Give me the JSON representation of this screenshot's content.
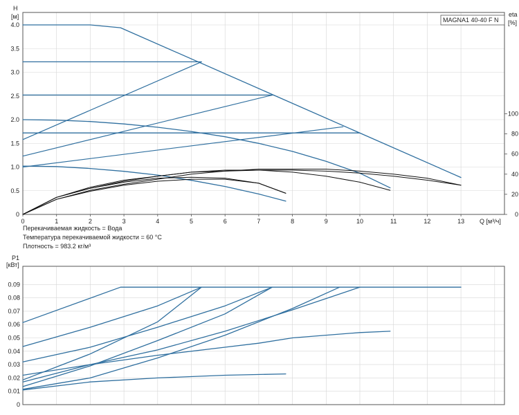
{
  "pump_model": "MAGNA1 40-40 F N",
  "notes": [
    "Перекачиваемая жидкость = Вода",
    "Температура перекачиваемой жидкости = 60 °C",
    "Плотность = 983.2 кг/м³"
  ],
  "colors": {
    "curve_blue": "#2f6f9f",
    "curve_black": "#111111",
    "grid": "#d6d6d6",
    "axis": "#555555"
  },
  "chart_data": [
    {
      "type": "line",
      "name": "head-chart",
      "y_label_lines": [
        "H",
        "[м]"
      ],
      "y2_label_lines": [
        "eta",
        "[%]"
      ],
      "x_label": "Q [м³/ч]",
      "xlim": [
        0,
        14
      ],
      "ylim": [
        0,
        4.5
      ],
      "y2lim": [
        0,
        100
      ],
      "x_ticks": [
        "0",
        "1",
        "2",
        "3",
        "4",
        "5",
        "6",
        "7",
        "8",
        "9",
        "10",
        "11",
        "12",
        "13"
      ],
      "y_ticks": [
        "0",
        "0.5",
        "1.0",
        "1.5",
        "2.0",
        "2.5",
        "3.0",
        "3.5",
        "4.0"
      ],
      "y2_ticks": [
        "0",
        "20",
        "40",
        "60",
        "80",
        "100"
      ],
      "head_curves": [
        {
          "x": [
            0,
            2,
            2.9,
            13
          ],
          "y": [
            4.0,
            4.0,
            3.94,
            0.78
          ]
        },
        {
          "x": [
            0,
            5.3
          ],
          "y": [
            3.22,
            3.22
          ]
        },
        {
          "x": [
            0,
            7.4
          ],
          "y": [
            2.52,
            2.52
          ]
        },
        {
          "x": [
            0,
            10
          ],
          "y": [
            1.72,
            1.72
          ]
        },
        {
          "x": [
            0,
            1,
            2,
            3,
            4,
            5,
            6,
            7,
            8,
            9,
            10,
            10.9
          ],
          "y": [
            2.0,
            1.99,
            1.96,
            1.91,
            1.84,
            1.75,
            1.64,
            1.5,
            1.33,
            1.12,
            0.87,
            0.56
          ]
        },
        {
          "x": [
            0,
            1,
            2,
            3,
            4,
            5,
            6,
            7,
            7.8
          ],
          "y": [
            1.02,
            1.01,
            0.97,
            0.91,
            0.83,
            0.72,
            0.59,
            0.43,
            0.28
          ]
        }
      ],
      "control_curves": [
        {
          "x": [
            0,
            5.3
          ],
          "y": [
            1.58,
            3.22
          ]
        },
        {
          "x": [
            0,
            7.4
          ],
          "y": [
            1.23,
            2.52
          ]
        },
        {
          "x": [
            0,
            9.5
          ],
          "y": [
            1.0,
            1.85
          ]
        }
      ],
      "efficiency_curves": [
        {
          "x": [
            0,
            1,
            2,
            3,
            4,
            5,
            6,
            7,
            8,
            9,
            10,
            11,
            12,
            13
          ],
          "y": [
            0,
            17,
            27,
            34,
            38,
            42,
            44,
            44,
            44,
            43,
            41,
            38,
            34,
            29
          ]
        },
        {
          "x": [
            0,
            1,
            2,
            3,
            4,
            5,
            6,
            7,
            8,
            9,
            10,
            10.9
          ],
          "y": [
            0,
            17,
            26,
            33,
            38,
            42,
            43,
            44,
            42,
            38,
            32,
            24
          ]
        },
        {
          "x": [
            0,
            1,
            2,
            3,
            4,
            5,
            6,
            7,
            7.8
          ],
          "y": [
            0,
            17,
            26,
            32,
            36,
            37,
            36,
            31,
            21
          ]
        },
        {
          "x": [
            0,
            1,
            2,
            3,
            4,
            5,
            6,
            7,
            8,
            9,
            10,
            11,
            12,
            13
          ],
          "y": [
            0,
            15,
            24,
            30,
            35,
            40,
            43,
            45,
            45,
            45,
            43,
            40,
            36,
            29
          ]
        },
        {
          "x": [
            0,
            1,
            2,
            3,
            4,
            5,
            6,
            7,
            7.8
          ],
          "y": [
            0,
            15,
            23,
            29,
            33,
            35,
            35,
            31,
            21
          ]
        }
      ]
    },
    {
      "type": "line",
      "name": "power-chart",
      "y_label_lines": [
        "P1",
        "[кВт]"
      ],
      "xlim": [
        0,
        14
      ],
      "ylim": [
        0,
        0.1
      ],
      "y_ticks": [
        "0",
        "0.01",
        "0.02",
        "0.03",
        "0.04",
        "0.05",
        "0.06",
        "0.07",
        "0.08",
        "0.09"
      ],
      "power_curves": [
        {
          "x": [
            0,
            2.9,
            13
          ],
          "y": [
            0.0615,
            0.088,
            0.088
          ]
        },
        {
          "x": [
            0,
            2,
            4,
            5.3
          ],
          "y": [
            0.0435,
            0.058,
            0.074,
            0.088
          ]
        },
        {
          "x": [
            0,
            2,
            4,
            6,
            7.4
          ],
          "y": [
            0.032,
            0.043,
            0.058,
            0.074,
            0.088
          ]
        },
        {
          "x": [
            0,
            2,
            4,
            6,
            8,
            10
          ],
          "y": [
            0.022,
            0.03,
            0.041,
            0.055,
            0.071,
            0.088
          ]
        },
        {
          "x": [
            0,
            2,
            4,
            6,
            7,
            8,
            9,
            10,
            10.9
          ],
          "y": [
            0.017,
            0.03,
            0.037,
            0.043,
            0.046,
            0.05,
            0.052,
            0.054,
            0.055
          ]
        },
        {
          "x": [
            0,
            2,
            4,
            6,
            7.8
          ],
          "y": [
            0.011,
            0.017,
            0.02,
            0.022,
            0.023
          ]
        },
        {
          "x": [
            0,
            2,
            4,
            5.3
          ],
          "y": [
            0.0185,
            0.038,
            0.062,
            0.088
          ]
        },
        {
          "x": [
            0,
            2,
            4,
            6,
            7.4
          ],
          "y": [
            0.0135,
            0.029,
            0.048,
            0.068,
            0.088
          ]
        },
        {
          "x": [
            0,
            2,
            4,
            6,
            8,
            9.4
          ],
          "y": [
            0.0115,
            0.02,
            0.035,
            0.052,
            0.072,
            0.088
          ]
        }
      ]
    }
  ]
}
